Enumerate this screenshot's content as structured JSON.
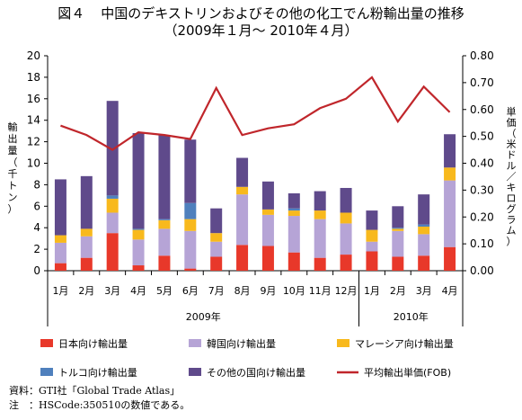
{
  "title": {
    "figure_no": "図４",
    "line1": "中国のデキストリンおよびその他の化工でん粉輸出量の推移",
    "line2": "（2009年１月～ 2010年４月）"
  },
  "notes": {
    "source": "資料：GTI社「Global Trade Atlas」",
    "note": "注　：HSCode:350510の数値である。"
  },
  "colors": {
    "japan": "#e8382a",
    "korea": "#b6a4d6",
    "malaysia": "#f8b91d",
    "turkey": "#4f80bd",
    "other": "#5f4a8b",
    "price_line": "#c0262b"
  },
  "chart_data": {
    "type": "bar",
    "stacked": true,
    "categories": [
      "1月",
      "2月",
      "3月",
      "4月",
      "5月",
      "6月",
      "7月",
      "8月",
      "9月",
      "10月",
      "11月",
      "12月",
      "1月",
      "2月",
      "3月",
      "4月"
    ],
    "year_groups": [
      {
        "label": "2009年",
        "count": 12
      },
      {
        "label": "2010年",
        "count": 4
      }
    ],
    "series": [
      {
        "name": "日本向け輸出量",
        "key": "japan",
        "axis": "left",
        "values": [
          0.7,
          1.2,
          3.5,
          0.5,
          1.4,
          0.2,
          1.3,
          2.4,
          2.3,
          1.7,
          1.2,
          1.5,
          1.8,
          1.3,
          1.4,
          2.2
        ]
      },
      {
        "name": "韓国向け輸出量",
        "key": "korea",
        "axis": "left",
        "values": [
          1.9,
          2.0,
          1.9,
          2.4,
          2.5,
          3.5,
          1.4,
          4.7,
          2.9,
          3.4,
          3.6,
          2.9,
          0.9,
          2.4,
          2.0,
          6.2
        ]
      },
      {
        "name": "マレーシア向け輸出量",
        "key": "malaysia",
        "axis": "left",
        "values": [
          0.7,
          0.7,
          1.3,
          0.9,
          0.8,
          1.1,
          0.8,
          0.7,
          0.5,
          0.5,
          0.8,
          1.0,
          1.1,
          0.2,
          0.7,
          1.2
        ]
      },
      {
        "name": "トルコ向け輸出量",
        "key": "turkey",
        "axis": "left",
        "values": [
          0.0,
          0.0,
          0.3,
          0.1,
          0.1,
          1.5,
          0.0,
          0.0,
          0.0,
          0.2,
          0.0,
          0.0,
          0.0,
          0.1,
          0.2,
          0.0
        ]
      },
      {
        "name": "その他の国向け輸出量",
        "key": "other",
        "axis": "left",
        "values": [
          5.2,
          4.9,
          8.8,
          8.9,
          7.8,
          5.9,
          2.3,
          2.7,
          2.6,
          1.4,
          1.8,
          2.3,
          1.8,
          2.0,
          2.8,
          3.1
        ]
      },
      {
        "name": "平均輸出単価(FOB)",
        "key": "price_line",
        "axis": "right",
        "type": "line",
        "values": [
          0.54,
          0.505,
          0.45,
          0.515,
          0.505,
          0.49,
          0.68,
          0.505,
          0.53,
          0.545,
          0.605,
          0.64,
          0.72,
          0.555,
          0.685,
          0.59
        ]
      }
    ],
    "ylabel": "輸出量（千トン）",
    "y2label": "単価（米ドル／キログラム）",
    "ylim": [
      0,
      20
    ],
    "y_ticks": [
      "0",
      "2",
      "4",
      "6",
      "8",
      "10",
      "12",
      "14",
      "16",
      "18",
      "20"
    ],
    "y2lim": [
      0,
      0.8
    ],
    "y2_ticks": [
      "0.00",
      "0.10",
      "0.20",
      "0.30",
      "0.40",
      "0.50",
      "0.60",
      "0.70",
      "0.80"
    ],
    "grid": false,
    "legend_position": "bottom"
  }
}
